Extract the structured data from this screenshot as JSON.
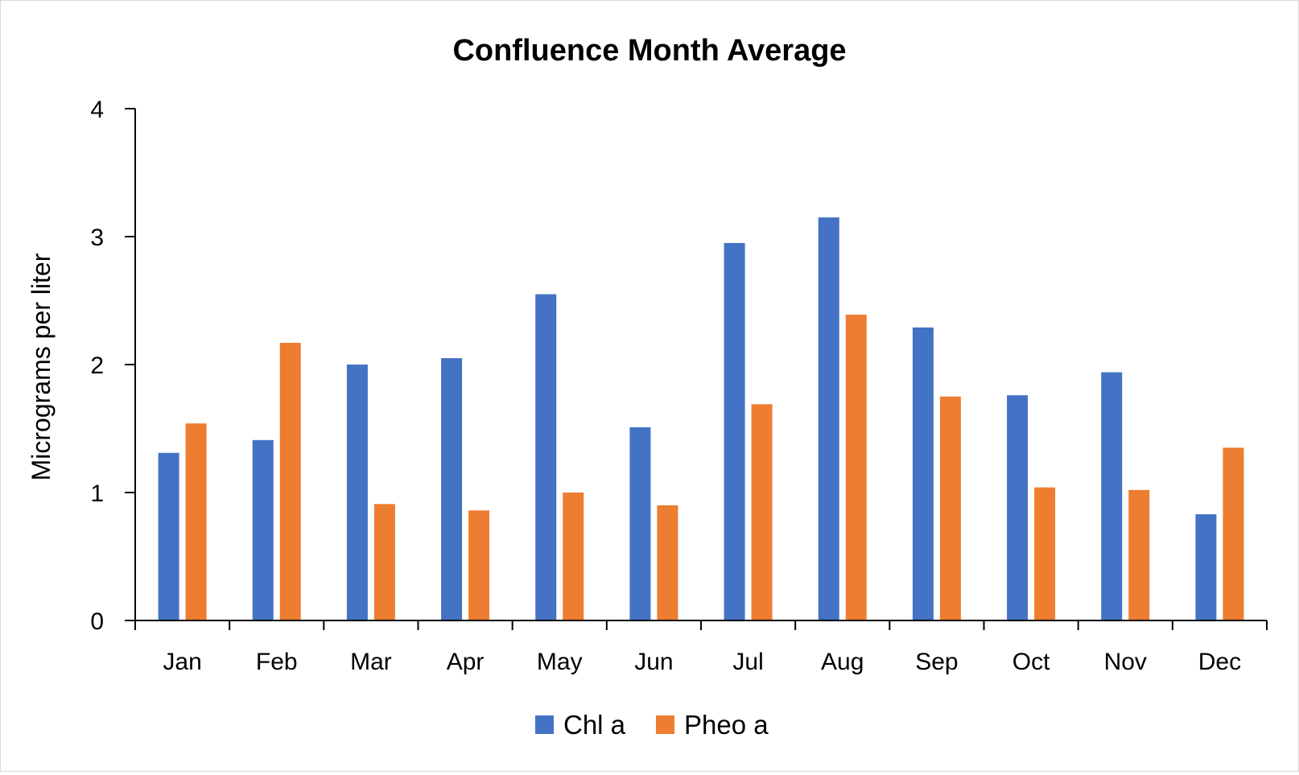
{
  "chart_data": {
    "type": "bar",
    "title": "Confluence Month Average",
    "xlabel": "",
    "ylabel": "Micrograms per liter",
    "ylim": [
      0,
      4
    ],
    "yticks": [
      0,
      1,
      2,
      3,
      4
    ],
    "grid": false,
    "legend_position": "bottom",
    "categories": [
      "Jan",
      "Feb",
      "Mar",
      "Apr",
      "May",
      "Jun",
      "Jul",
      "Aug",
      "Sep",
      "Oct",
      "Nov",
      "Dec"
    ],
    "series": [
      {
        "name": "Chl a",
        "color": "#4472C4",
        "values": [
          1.31,
          1.41,
          2.0,
          2.05,
          2.55,
          1.51,
          2.95,
          3.15,
          2.29,
          1.76,
          1.94,
          0.83
        ]
      },
      {
        "name": "Pheo a",
        "color": "#ED7D31",
        "values": [
          1.54,
          2.17,
          0.91,
          0.86,
          1.0,
          0.9,
          1.69,
          2.39,
          1.75,
          1.04,
          1.02,
          1.35
        ]
      }
    ]
  }
}
